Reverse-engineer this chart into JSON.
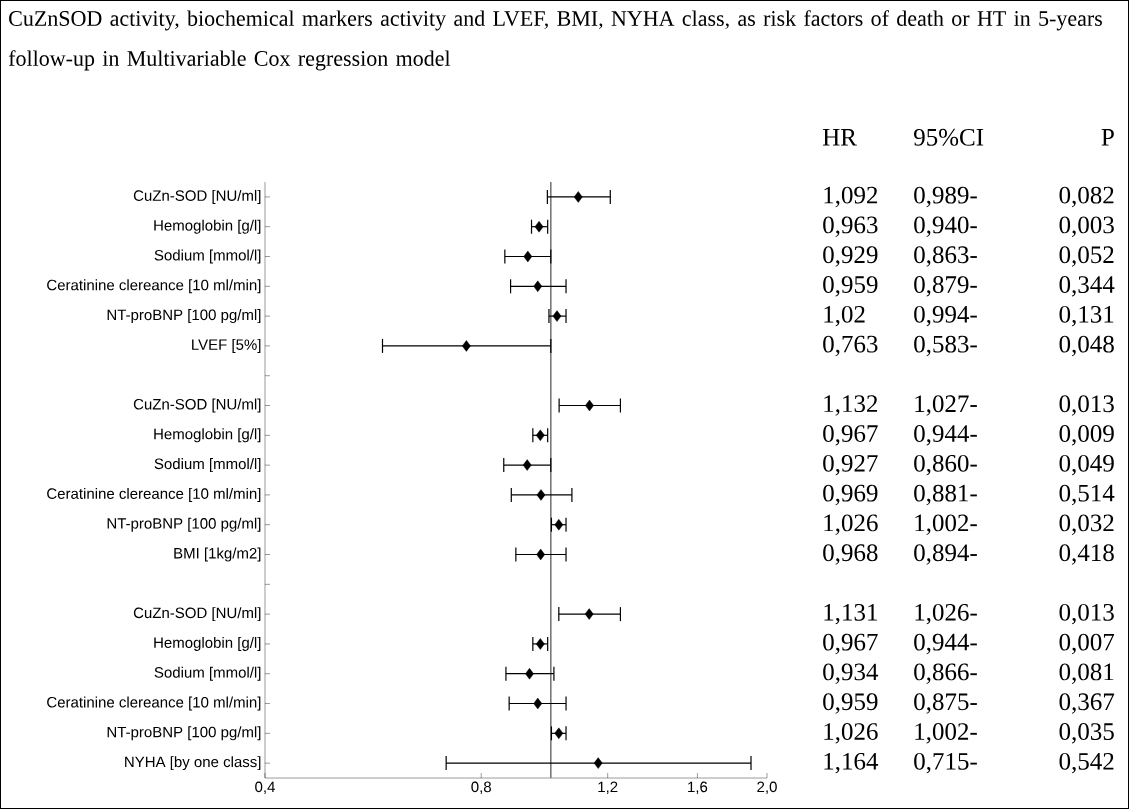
{
  "chart_data": {
    "type": "scatter",
    "orientation": "horizontal",
    "title": "CuZnSOD activity, biochemical markers activity and LVEF, BMI, NYHA class, as risk factors of death or HT in 5-years follow-up in Multivariable Cox regression model",
    "categories": [
      "CuZn-SOD [NU/ml]",
      "Hemoglobin [g/l]",
      "Sodium [mmol/l]",
      "Ceratinine clereance [10 ml/min]",
      "NT-proBNP [100 pg/ml]",
      "LVEF [5%]",
      null,
      "CuZn-SOD [NU/ml]",
      "Hemoglobin [g/l]",
      "Sodium [mmol/l]",
      "Ceratinine clereance [10 ml/min]",
      "NT-proBNP [100 pg/ml]",
      "BMI [1kg/m2]",
      null,
      "CuZn-SOD [NU/ml]",
      "Hemoglobin [g/l]",
      "Sodium [mmol/l]",
      "Ceratinine clereance [10 ml/min]",
      "NT-proBNP [100 pg/ml]",
      "NYHA [by one class]"
    ],
    "values": [
      1.092,
      0.963,
      0.929,
      0.959,
      1.02,
      0.763,
      null,
      1.132,
      0.967,
      0.927,
      0.969,
      1.026,
      0.968,
      null,
      1.131,
      0.967,
      0.934,
      0.959,
      1.026,
      1.164
    ],
    "errors": [
      [
        0.989,
        1.21
      ],
      [
        0.94,
        0.99
      ],
      [
        0.863,
        1.0
      ],
      [
        0.879,
        1.05
      ],
      [
        0.994,
        1.05
      ],
      [
        0.583,
        1.0
      ],
      null,
      [
        1.027,
        1.25
      ],
      [
        0.944,
        0.99
      ],
      [
        0.86,
        1.0
      ],
      [
        0.881,
        1.07
      ],
      [
        1.002,
        1.05
      ],
      [
        0.894,
        1.05
      ],
      null,
      [
        1.026,
        1.25
      ],
      [
        0.944,
        0.99
      ],
      [
        0.866,
        1.01
      ],
      [
        0.875,
        1.05
      ],
      [
        1.002,
        1.05
      ],
      [
        0.715,
        1.9
      ]
    ],
    "annotations": [
      "HR",
      "95%CI",
      "P",
      "1,092",
      "0,963",
      "0,929",
      "0,959",
      "1,02",
      "0,763",
      "1,132",
      "0,967",
      "0,927",
      "0,969",
      "1,026",
      "0,968",
      "1,131",
      "0,967",
      "0,934",
      "0,959",
      "1,026",
      "1,164",
      "0,989-",
      "0,940-",
      "0,863-",
      "0,879-",
      "0,994-",
      "0,583-",
      "1,027-",
      "0,944-",
      "0,860-",
      "0,881-",
      "1,002-",
      "0,894-",
      "1,026-",
      "0,944-",
      "0,866-",
      "0,875-",
      "1,002-",
      "0,715-",
      "0,082",
      "0,003",
      "0,052",
      "0,344",
      "0,131",
      "0,048",
      "0,013",
      "0,009",
      "0,049",
      "0,514",
      "0,032",
      "0,418",
      "0,013",
      "0,007",
      "0,081",
      "0,367",
      "0,035",
      "0,542"
    ],
    "color": "#000000",
    "marker": "diamond",
    "log": "x",
    "xlim": [
      0.4,
      2.0
    ],
    "xticks": [
      {
        "value": 0.4,
        "label": "0,4"
      },
      {
        "value": 0.8,
        "label": "0,8"
      },
      {
        "value": 1.2,
        "label": "1,2"
      },
      {
        "value": 1.6,
        "label": "1,6"
      },
      {
        "value": 2.0,
        "label": "2,0"
      }
    ],
    "ref_lines": [
      {
        "axis": "x",
        "value": 1,
        "color": "#707070"
      }
    ],
    "grid": false
  }
}
